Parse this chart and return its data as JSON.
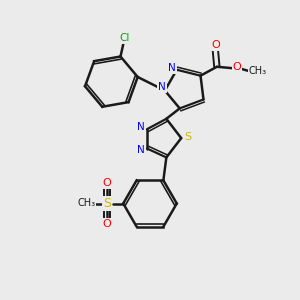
{
  "bg_color": "#ebebeb",
  "bond_color": "#1a1a1a",
  "N_color": "#0000ff",
  "O_color": "#ff0000",
  "S_color": "#ccbb00",
  "Cl_color": "#00aa00",
  "figsize": [
    3.0,
    3.0
  ],
  "dpi": 100,
  "xlim": [
    0,
    10
  ],
  "ylim": [
    0,
    10
  ]
}
